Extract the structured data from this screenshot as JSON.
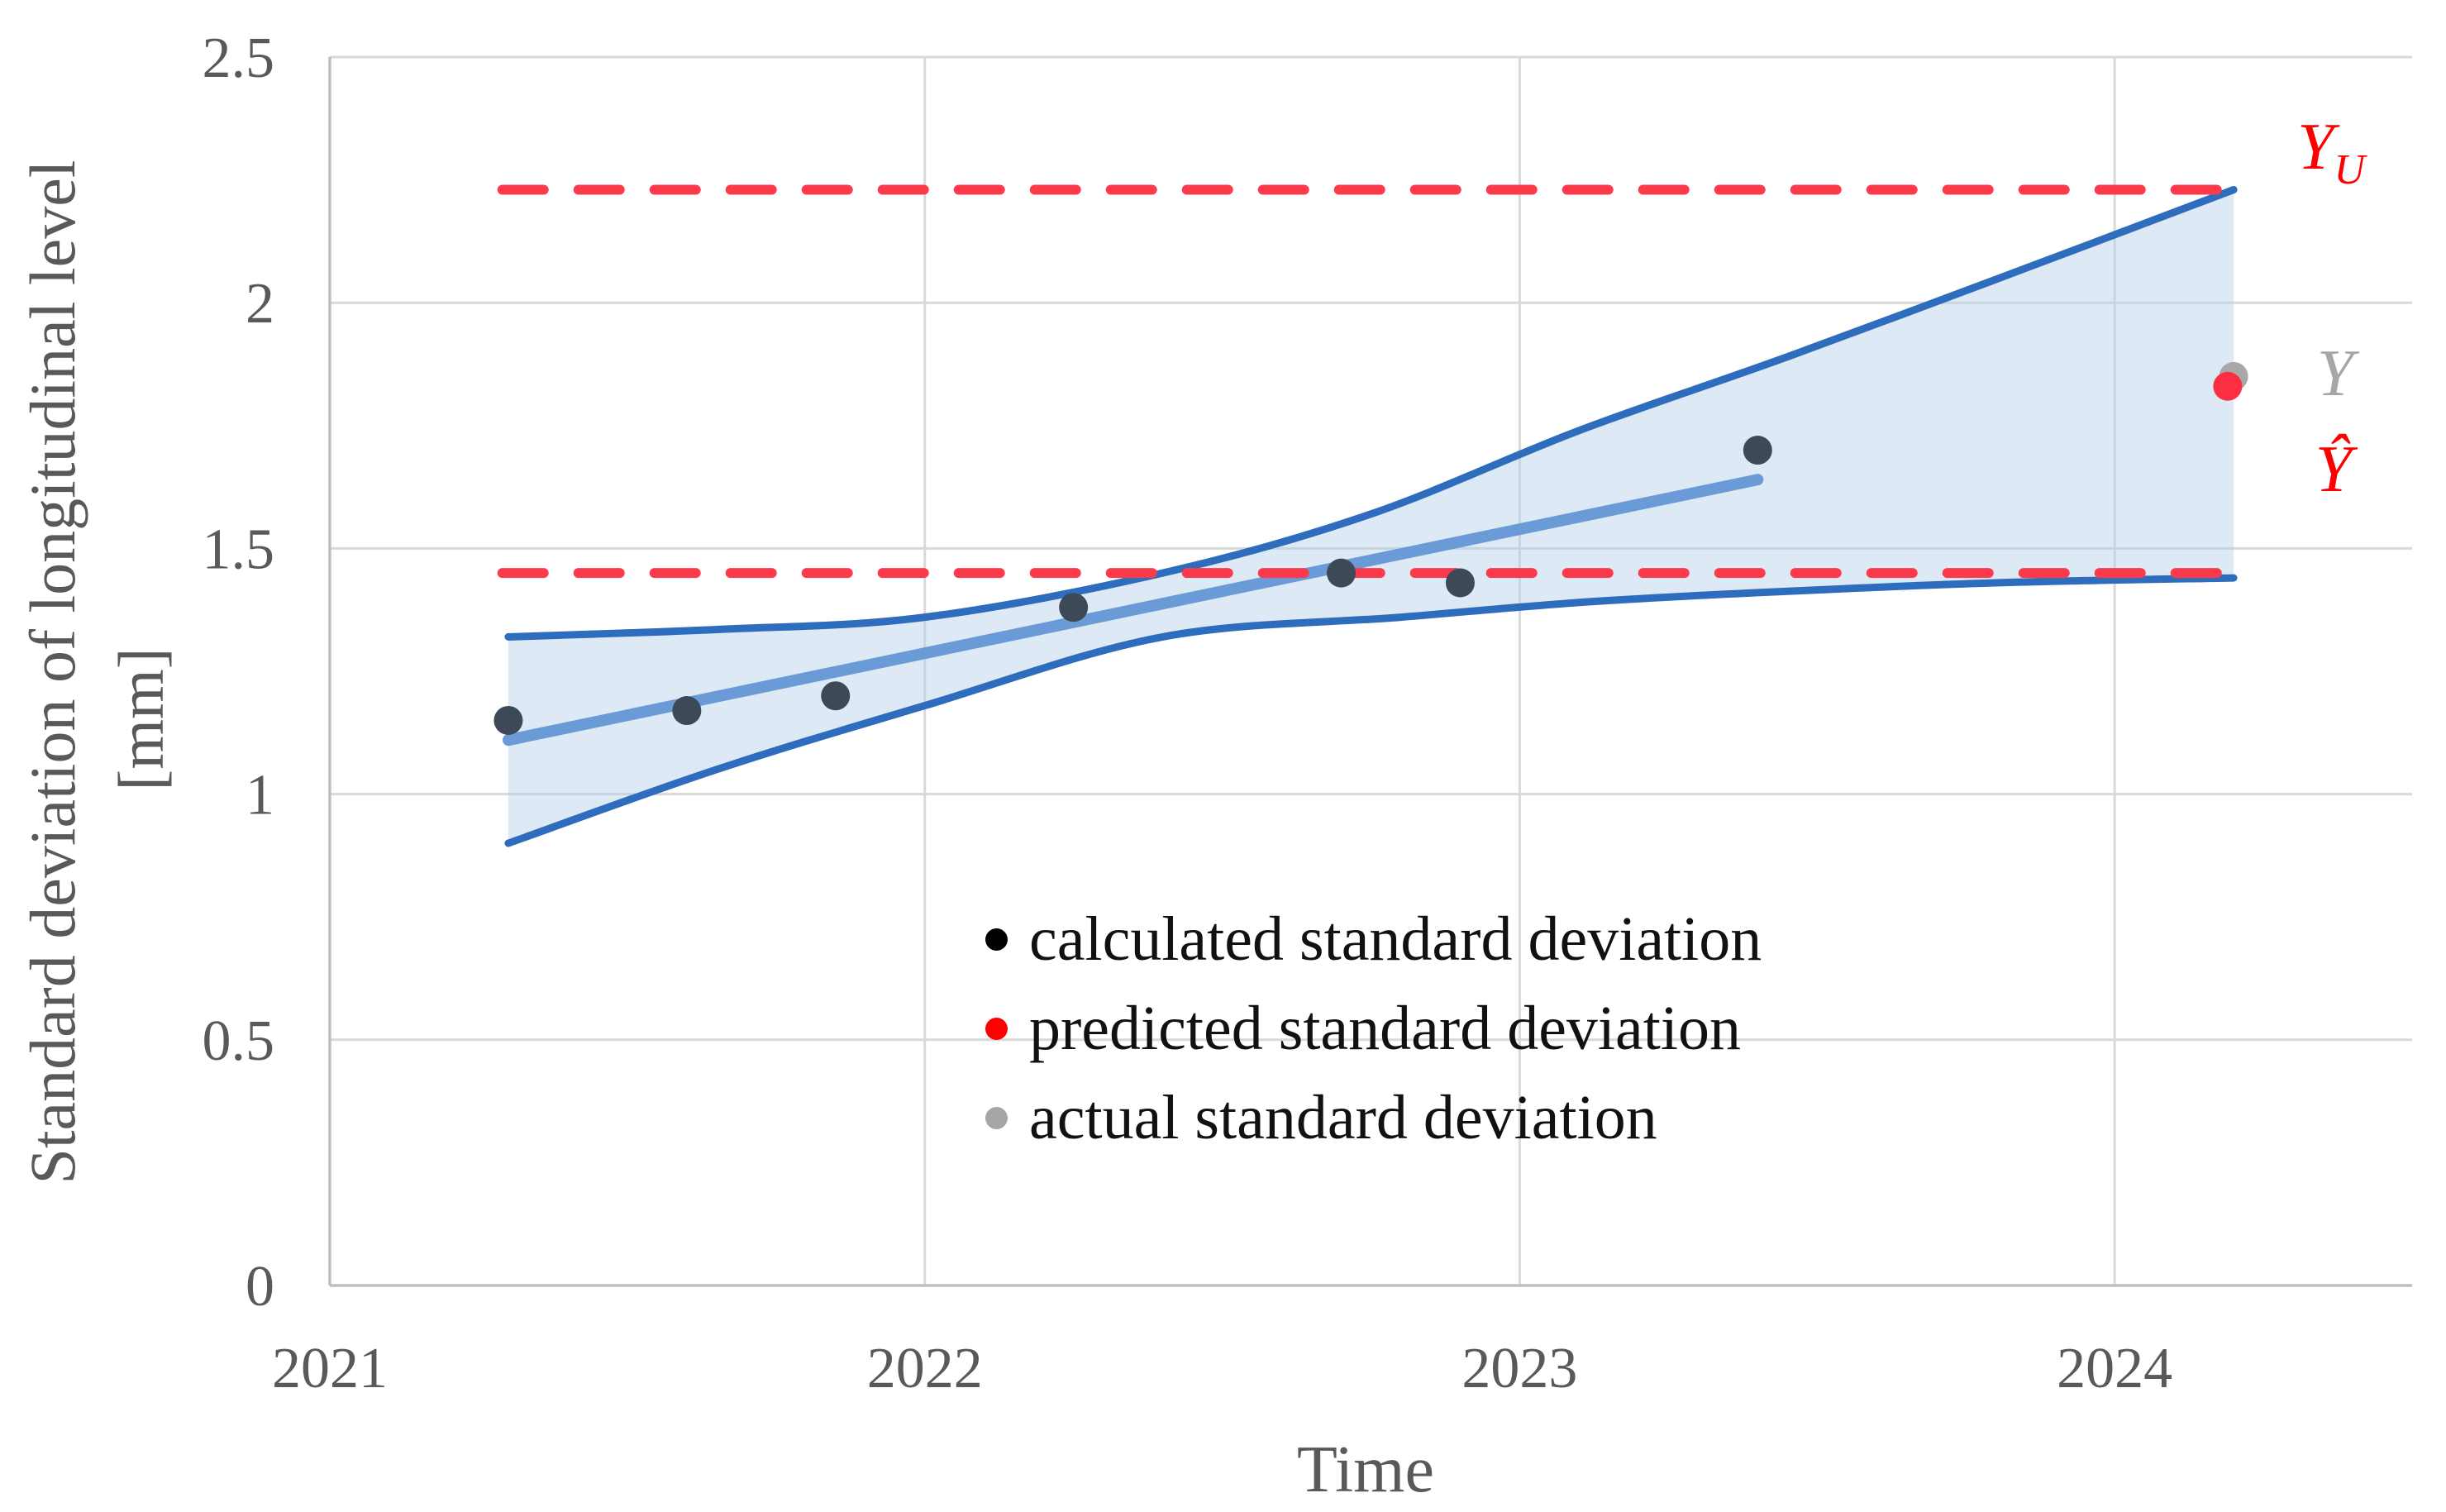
{
  "chart_data": {
    "type": "scatter",
    "x_axis": {
      "title": "Time",
      "range": [
        2021,
        2024.5
      ],
      "tick_labels": [
        "2021",
        "2022",
        "2023",
        "2024"
      ],
      "tick_values": [
        2021,
        2022,
        2023,
        2024
      ],
      "grid": true
    },
    "y_axis": {
      "title_line1": "Standard deviation of longitudinal level",
      "title_line2": "[mm]",
      "range": [
        0,
        2.5
      ],
      "tick_labels": [
        "0",
        "0.5",
        "1",
        "1.5",
        "2",
        "2.5"
      ],
      "tick_values": [
        0,
        0.5,
        1,
        1.5,
        2,
        2.5
      ],
      "grid": true
    },
    "series": [
      {
        "name": "calculated standard deviation",
        "marker_color": "#3d4956",
        "marker_radius": 17.5,
        "points": [
          {
            "x": 2021.3,
            "y": 1.15
          },
          {
            "x": 2021.6,
            "y": 1.17
          },
          {
            "x": 2021.85,
            "y": 1.2
          },
          {
            "x": 2022.25,
            "y": 1.38
          },
          {
            "x": 2022.7,
            "y": 1.45
          },
          {
            "x": 2022.9,
            "y": 1.43
          },
          {
            "x": 2023.4,
            "y": 1.7
          }
        ]
      },
      {
        "name": "actual standard deviation",
        "marker_color": "#a8a8a8",
        "marker_radius": 17.5,
        "points": [
          {
            "x": 2024.2,
            "y": 1.85
          }
        ]
      },
      {
        "name": "predicted standard deviation",
        "marker_color": "#fb2e42",
        "marker_radius": 17.5,
        "points": [
          {
            "x": 2024.19,
            "y": 1.83
          }
        ]
      }
    ],
    "regression": {
      "trend_color": "#6b9bd7",
      "ci_line_color": "#2e6cbd",
      "band_fill_rgba": "rgba(180,208,235,0.45)",
      "trend": [
        {
          "x": 2021.3,
          "y": 1.11
        },
        {
          "x": 2023.4,
          "y": 1.64
        }
      ],
      "upper_ci": [
        {
          "x": 2021.3,
          "y": 1.32
        },
        {
          "x": 2021.65,
          "y": 1.335
        },
        {
          "x": 2022.0,
          "y": 1.36
        },
        {
          "x": 2022.4,
          "y": 1.45
        },
        {
          "x": 2022.75,
          "y": 1.57
        },
        {
          "x": 2023.1,
          "y": 1.74
        },
        {
          "x": 2023.45,
          "y": 1.89
        },
        {
          "x": 2023.85,
          "y": 2.07
        },
        {
          "x": 2024.2,
          "y": 2.23
        }
      ],
      "lower_ci": [
        {
          "x": 2021.3,
          "y": 0.9
        },
        {
          "x": 2021.65,
          "y": 1.05
        },
        {
          "x": 2022.0,
          "y": 1.18
        },
        {
          "x": 2022.4,
          "y": 1.32
        },
        {
          "x": 2022.8,
          "y": 1.36
        },
        {
          "x": 2023.1,
          "y": 1.39
        },
        {
          "x": 2023.4,
          "y": 1.41
        },
        {
          "x": 2023.8,
          "y": 1.43
        },
        {
          "x": 2024.2,
          "y": 1.44
        }
      ]
    },
    "thresholds": [
      {
        "id": "upper-limit",
        "value": 2.23,
        "x_start": 2021.29,
        "x_end": 2024.2,
        "color": "#fb3b4b",
        "style": "dashed"
      },
      {
        "id": "lower-limit",
        "value": 1.45,
        "x_start": 2021.29,
        "x_end": 2024.2,
        "color": "#fb3b4b",
        "style": "dashed"
      }
    ],
    "annotations": [
      {
        "id": "yu",
        "main": "Y",
        "sub": "U",
        "color": "#fe0000"
      },
      {
        "id": "y-actual",
        "main": "Y",
        "color": "#a6a6a6"
      },
      {
        "id": "y-hat",
        "main": "Ŷ",
        "color": "#fe0000"
      }
    ],
    "legend": [
      {
        "label": "calculated standard deviation",
        "color": "#000000"
      },
      {
        "label": "predicted standard deviation",
        "color": "#ff0000"
      },
      {
        "label": "actual standard deviation",
        "color": "#a6a6a6"
      }
    ],
    "style": {
      "gridline_color": "#d9d9d9",
      "axis_color": "#bfbfbf",
      "tick_text_color": "#595959"
    }
  }
}
